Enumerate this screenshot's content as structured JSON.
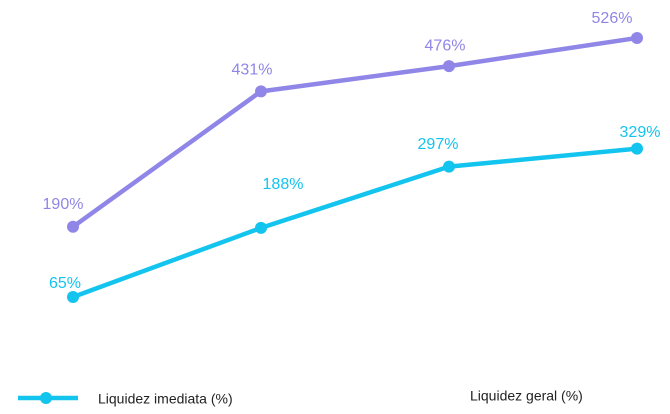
{
  "chart_data": {
    "type": "line",
    "categories": [
      null,
      null,
      null,
      null
    ],
    "series": [
      {
        "name": "Liquidez imediata (%)",
        "color": "#13c4ee",
        "values": [
          65,
          188,
          297,
          329
        ],
        "value_labels": [
          "65%",
          "188%",
          "297%",
          "329%"
        ]
      },
      {
        "name": "Liquidez geral (%)",
        "color": "#8f86e8",
        "values": [
          190,
          431,
          476,
          526
        ],
        "value_labels": [
          "190%",
          "431%",
          "476%",
          "526%"
        ]
      }
    ]
  }
}
